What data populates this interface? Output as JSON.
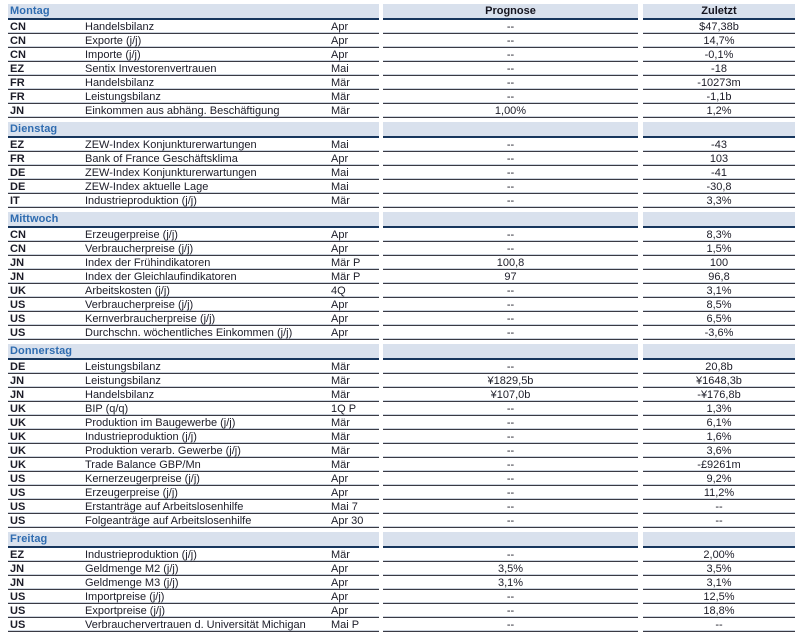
{
  "calendar": {
    "columns": {
      "prognose": "Prognose",
      "zuletzt": "Zuletzt"
    },
    "colors": {
      "header_background": "#d9e1ed",
      "day_label_blue": "#2f6cb0",
      "header_underline_navy": "#17365d",
      "row_border_dark": "#3a3a44",
      "text_dark": "#1c1c28"
    },
    "sections": [
      {
        "day": "Montag",
        "rows": [
          {
            "country": "CN",
            "indicator": "Handelsbilanz",
            "period": "Apr",
            "prognose": "--",
            "zuletzt": "$47,38b"
          },
          {
            "country": "CN",
            "indicator": "Exporte (j/j)",
            "period": "Apr",
            "prognose": "--",
            "zuletzt": "14,7%"
          },
          {
            "country": "CN",
            "indicator": "Importe (j/j)",
            "period": "Apr",
            "prognose": "--",
            "zuletzt": "-0,1%"
          },
          {
            "country": "EZ",
            "indicator": "Sentix Investorenvertrauen",
            "period": "Mai",
            "prognose": "--",
            "zuletzt": "-18"
          },
          {
            "country": "FR",
            "indicator": "Handelsbilanz",
            "period": "Mär",
            "prognose": "--",
            "zuletzt": "-10273m"
          },
          {
            "country": "FR",
            "indicator": "Leistungsbilanz",
            "period": "Mär",
            "prognose": "--",
            "zuletzt": "-1,1b"
          },
          {
            "country": "JN",
            "indicator": "Einkommen aus abhäng. Beschäftigung",
            "period": "Mär",
            "prognose": "1,00%",
            "zuletzt": "1,2%"
          }
        ]
      },
      {
        "day": "Dienstag",
        "rows": [
          {
            "country": "EZ",
            "indicator": "ZEW-Index Konjunkturerwartungen",
            "period": "Mai",
            "prognose": "--",
            "zuletzt": "-43"
          },
          {
            "country": "FR",
            "indicator": "Bank of France Geschäftsklima",
            "period": "Apr",
            "prognose": "--",
            "zuletzt": "103"
          },
          {
            "country": "DE",
            "indicator": "ZEW-Index Konjunkturerwartungen",
            "period": "Mai",
            "prognose": "--",
            "zuletzt": "-41"
          },
          {
            "country": "DE",
            "indicator": "ZEW-Index aktuelle Lage",
            "period": "Mai",
            "prognose": "--",
            "zuletzt": "-30,8"
          },
          {
            "country": "IT",
            "indicator": "Industrieproduktion (j/j)",
            "period": "Mär",
            "prognose": "--",
            "zuletzt": "3,3%"
          }
        ]
      },
      {
        "day": "Mittwoch",
        "rows": [
          {
            "country": "CN",
            "indicator": "Erzeugerpreise (j/j)",
            "period": "Apr",
            "prognose": "--",
            "zuletzt": "8,3%"
          },
          {
            "country": "CN",
            "indicator": "Verbraucherpreise (j/j)",
            "period": "Apr",
            "prognose": "--",
            "zuletzt": "1,5%"
          },
          {
            "country": "JN",
            "indicator": "Index der Frühindikatoren",
            "period": "Mär P",
            "prognose": "100,8",
            "zuletzt": "100"
          },
          {
            "country": "JN",
            "indicator": "Index der Gleichlaufindikatoren",
            "period": "Mär P",
            "prognose": "97",
            "zuletzt": "96,8"
          },
          {
            "country": "UK",
            "indicator": "Arbeitskosten (j/j)",
            "period": "4Q",
            "prognose": "--",
            "zuletzt": "3,1%"
          },
          {
            "country": "US",
            "indicator": "Verbraucherpreise (j/j)",
            "period": "Apr",
            "prognose": "--",
            "zuletzt": "8,5%"
          },
          {
            "country": "US",
            "indicator": "Kernverbraucherpreise (j/j)",
            "period": "Apr",
            "prognose": "--",
            "zuletzt": "6,5%"
          },
          {
            "country": "US",
            "indicator": "Durchschn. wöchentliches Einkommen (j/j)",
            "period": "Apr",
            "prognose": "--",
            "zuletzt": "-3,6%"
          }
        ]
      },
      {
        "day": "Donnerstag",
        "rows": [
          {
            "country": "DE",
            "indicator": "Leistungsbilanz",
            "period": "Mär",
            "prognose": "--",
            "zuletzt": "20,8b"
          },
          {
            "country": "JN",
            "indicator": "Leistungsbilanz",
            "period": "Mär",
            "prognose": "¥1829,5b",
            "zuletzt": "¥1648,3b"
          },
          {
            "country": "JN",
            "indicator": "Handelsbilanz",
            "period": "Mär",
            "prognose": "¥107,0b",
            "zuletzt": "-¥176,8b"
          },
          {
            "country": "UK",
            "indicator": "BIP (q/q)",
            "period": "1Q P",
            "prognose": "--",
            "zuletzt": "1,3%"
          },
          {
            "country": "UK",
            "indicator": "Produktion im Baugewerbe (j/j)",
            "period": "Mär",
            "prognose": "--",
            "zuletzt": "6,1%"
          },
          {
            "country": "UK",
            "indicator": "Industrieproduktion (j/j)",
            "period": "Mär",
            "prognose": "--",
            "zuletzt": "1,6%"
          },
          {
            "country": "UK",
            "indicator": "Produktion verarb. Gewerbe (j/j)",
            "period": "Mär",
            "prognose": "--",
            "zuletzt": "3,6%"
          },
          {
            "country": "UK",
            "indicator": "Trade Balance GBP/Mn",
            "period": "Mär",
            "prognose": "--",
            "zuletzt": "-£9261m"
          },
          {
            "country": "US",
            "indicator": "Kernerzeugerpreise (j/j)",
            "period": "Apr",
            "prognose": "--",
            "zuletzt": "9,2%"
          },
          {
            "country": "US",
            "indicator": "Erzeugerpreise (j/j)",
            "period": "Apr",
            "prognose": "--",
            "zuletzt": "11,2%"
          },
          {
            "country": "US",
            "indicator": "Erstanträge auf Arbeitslosenhilfe",
            "period": "Mai 7",
            "prognose": "--",
            "zuletzt": "--"
          },
          {
            "country": "US",
            "indicator": "Folgeanträge auf Arbeitslosenhilfe",
            "period": "Apr 30",
            "prognose": "--",
            "zuletzt": "--"
          }
        ]
      },
      {
        "day": "Freitag",
        "rows": [
          {
            "country": "EZ",
            "indicator": "Industrieproduktion (j/j)",
            "period": "Mär",
            "prognose": "--",
            "zuletzt": "2,00%"
          },
          {
            "country": "JN",
            "indicator": "Geldmenge M2 (j/j)",
            "period": "Apr",
            "prognose": "3,5%",
            "zuletzt": "3,5%"
          },
          {
            "country": "JN",
            "indicator": "Geldmenge M3 (j/j)",
            "period": "Apr",
            "prognose": "3,1%",
            "zuletzt": "3,1%"
          },
          {
            "country": "US",
            "indicator": "Importpreise (j/j)",
            "period": "Apr",
            "prognose": "--",
            "zuletzt": "12,5%"
          },
          {
            "country": "US",
            "indicator": "Exportpreise (j/j)",
            "period": "Apr",
            "prognose": "--",
            "zuletzt": "18,8%"
          },
          {
            "country": "US",
            "indicator": "Verbrauchervertrauen d. Universität Michigan",
            "period": "Mai P",
            "prognose": "--",
            "zuletzt": "--"
          }
        ]
      }
    ]
  }
}
